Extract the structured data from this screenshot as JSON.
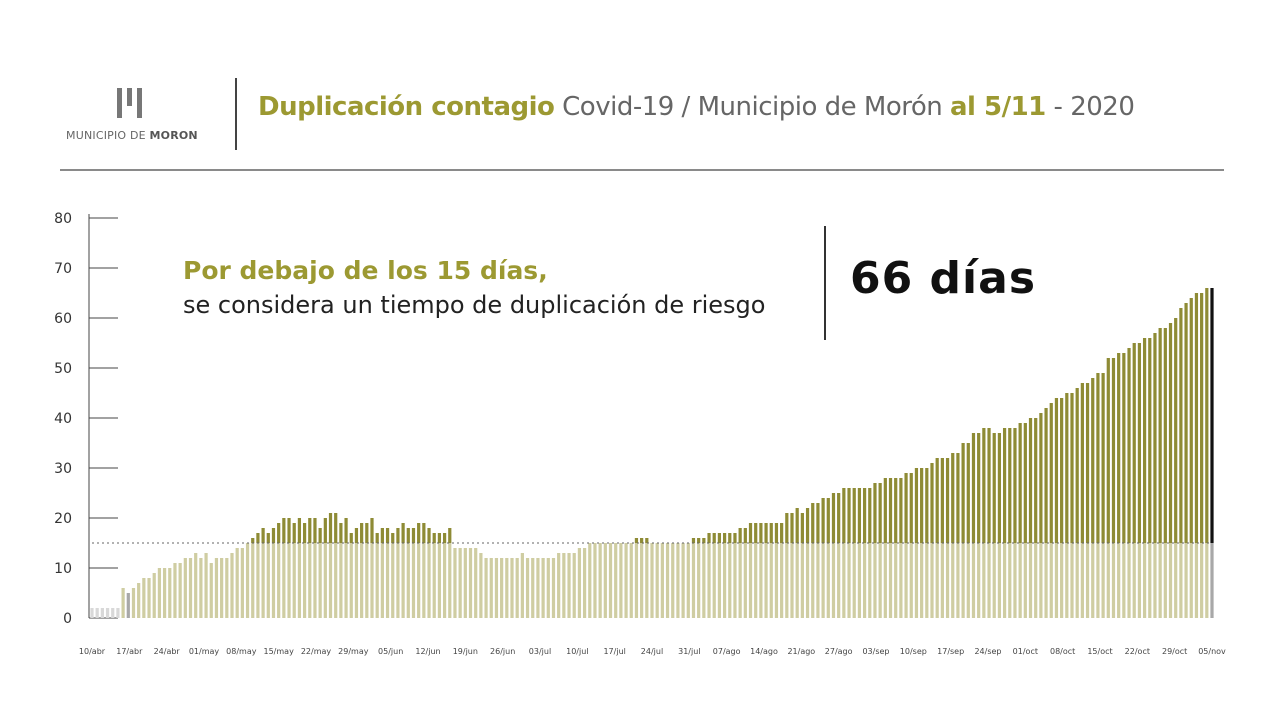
{
  "header": {
    "logo_text_prefix": "MUNICIPIO DE ",
    "logo_text_bold": "MORON",
    "title_bold": "Duplicación contagio",
    "title_middle": " Covid-19 / Municipio de Morón ",
    "title_date": "al 5/11",
    "title_year": " - 2020"
  },
  "annotation": {
    "risk_title": "Por debajo de los 15 días,",
    "risk_subtitle": "se considera un tiempo de duplicación de riesgo",
    "current_value": "66 días"
  },
  "colors": {
    "accent": "#9c9932",
    "bar_above": "#8e8b35",
    "bar_below": "#cfcda2",
    "bar_lead": "#d8d8d8",
    "bar_grey": "#a8a8a8",
    "bar_last": "#111111",
    "threshold_line": "#666666"
  },
  "chart_data": {
    "type": "bar",
    "title": "",
    "xlabel": "",
    "ylabel": "",
    "ylim": [
      0,
      80
    ],
    "yticks": [
      0,
      10,
      20,
      30,
      40,
      50,
      60,
      70,
      80
    ],
    "threshold": 15,
    "start_date": "10/abr",
    "end_date": "05/nov",
    "x_tick_labels": [
      "10/abr",
      "17/abr",
      "24/abr",
      "01/may",
      "08/may",
      "15/may",
      "22/may",
      "29/may",
      "05/jun",
      "12/jun",
      "19/jun",
      "26/jun",
      "03/jul",
      "10/jul",
      "17/jul",
      "24/jul",
      "31/jul",
      "07/ago",
      "14/ago",
      "21/ago",
      "27/ago",
      "03/sep",
      "10/sep",
      "17/sep",
      "24/sep",
      "01/oct",
      "08/oct",
      "15/oct",
      "22/oct",
      "29/oct",
      "05/nov"
    ],
    "values": [
      2,
      2,
      2,
      2,
      2,
      2,
      6,
      5,
      6,
      7,
      8,
      8,
      9,
      10,
      10,
      10,
      11,
      11,
      12,
      12,
      13,
      12,
      13,
      11,
      12,
      12,
      12,
      13,
      14,
      14,
      15,
      16,
      17,
      18,
      17,
      18,
      19,
      20,
      20,
      19,
      20,
      19,
      20,
      20,
      18,
      20,
      21,
      21,
      19,
      20,
      17,
      18,
      19,
      19,
      20,
      17,
      18,
      18,
      17,
      18,
      19,
      18,
      18,
      19,
      19,
      18,
      17,
      17,
      17,
      18,
      14,
      14,
      14,
      14,
      14,
      13,
      12,
      12,
      12,
      12,
      12,
      12,
      12,
      13,
      12,
      12,
      12,
      12,
      12,
      12,
      13,
      13,
      13,
      13,
      14,
      14,
      15,
      15,
      15,
      15,
      15,
      15,
      15,
      15,
      15,
      16,
      16,
      16,
      15,
      15,
      15,
      15,
      15,
      15,
      15,
      15,
      16,
      16,
      16,
      17,
      17,
      17,
      17,
      17,
      17,
      18,
      18,
      19,
      19,
      19,
      19,
      19,
      19,
      19,
      21,
      21,
      22,
      21,
      22,
      23,
      23,
      24,
      24,
      25,
      25,
      26,
      26,
      26,
      26,
      26,
      26,
      27,
      27,
      28,
      28,
      28,
      28,
      29,
      29,
      30,
      30,
      30,
      31,
      32,
      32,
      32,
      33,
      33,
      35,
      35,
      37,
      37,
      38,
      38,
      37,
      37,
      38,
      38,
      38,
      39,
      39,
      40,
      40,
      41,
      42,
      43,
      44,
      44,
      45,
      45,
      46,
      47,
      47,
      48,
      49,
      49,
      52,
      52,
      53,
      53,
      54,
      55,
      55,
      56,
      56,
      57,
      58,
      58,
      59,
      60,
      62,
      63,
      64,
      65,
      65,
      66,
      66
    ]
  }
}
